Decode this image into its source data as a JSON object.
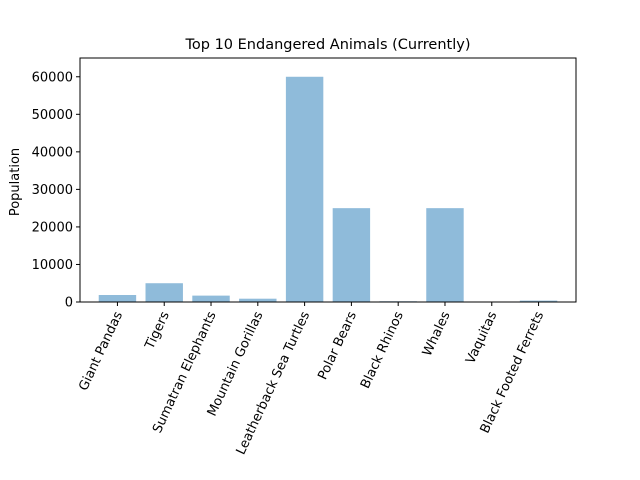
{
  "chart_data": {
    "type": "bar",
    "title": "Top 10 Endangered Animals (Currently)",
    "xlabel": "",
    "ylabel": "Population",
    "categories": [
      "Giant Pandas",
      "Tigers",
      "Sumatran Elephants",
      "Mountain Gorillas",
      "Leatherback Sea Turtles",
      "Polar Bears",
      "Black Rhinos",
      "Whales",
      "Vaquitas",
      "Black Footed Ferrets"
    ],
    "values": [
      1864,
      5000,
      1700,
      880,
      60000,
      25000,
      200,
      25000,
      30,
      370
    ],
    "ylim": [
      0,
      65000
    ],
    "yticks": [
      0,
      10000,
      20000,
      30000,
      40000,
      50000,
      60000
    ],
    "ytick_labels": [
      "0",
      "10000",
      "20000",
      "30000",
      "40000",
      "50000",
      "60000"
    ],
    "bar_color": "#8fbbda",
    "grid": false,
    "legend": "none"
  }
}
